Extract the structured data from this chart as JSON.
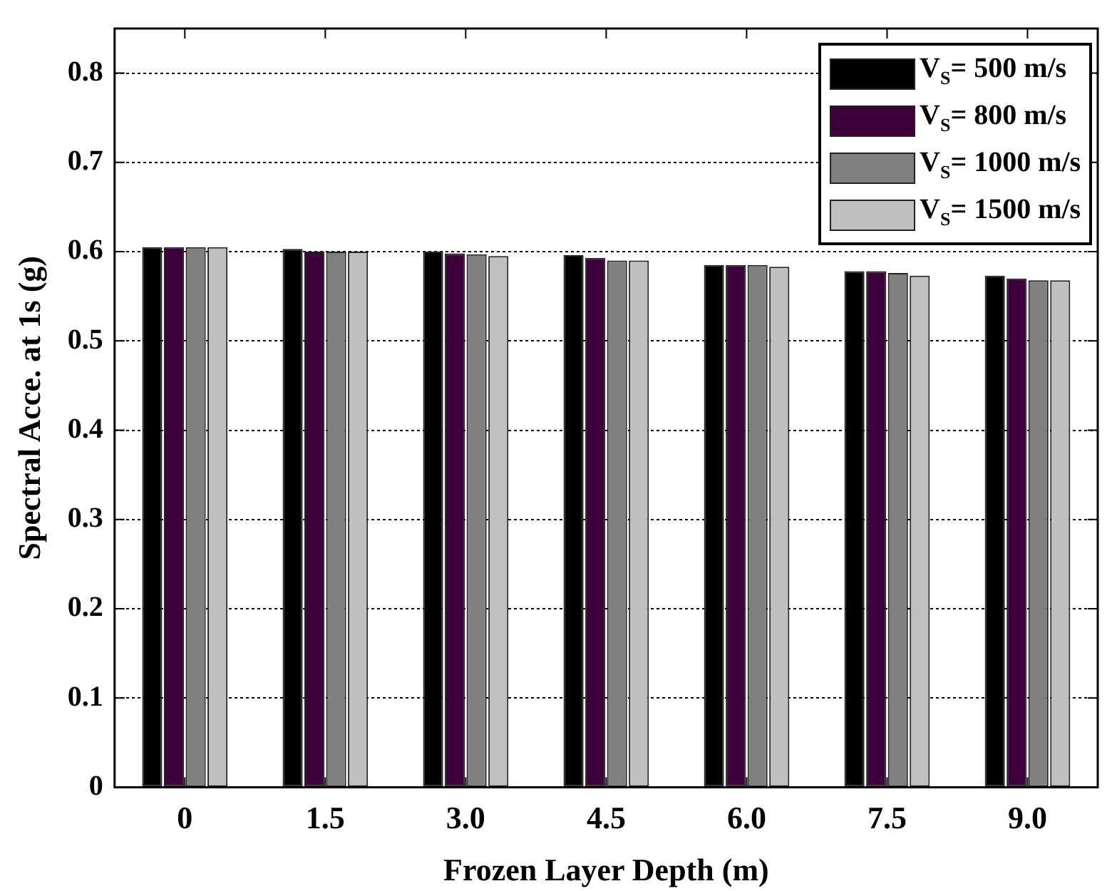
{
  "chart_data": {
    "type": "bar",
    "xlabel": "Frozen Layer Depth (m)",
    "ylabel": "Spectral Acce. at 1s (g)",
    "categories": [
      "0",
      "1.5",
      "3.0",
      "4.5",
      "6.0",
      "7.5",
      "9.0"
    ],
    "series": [
      {
        "name": "V$_{S}$= 500 m/s",
        "color": "#000000",
        "values": [
          0.605,
          0.603,
          0.6,
          0.596,
          0.585,
          0.578,
          0.573
        ]
      },
      {
        "name": "V$_{S}$= 800 m/s",
        "color": "#3d003d",
        "values": [
          0.605,
          0.6,
          0.598,
          0.593,
          0.585,
          0.578,
          0.57
        ]
      },
      {
        "name": "V$_{S}$= 1000 m/s",
        "color": "#808080",
        "values": [
          0.605,
          0.6,
          0.597,
          0.59,
          0.585,
          0.576,
          0.568
        ]
      },
      {
        "name": "V$_{S}$= 1500 m/s",
        "color": "#c0c0c0",
        "values": [
          0.605,
          0.6,
          0.595,
          0.59,
          0.583,
          0.573,
          0.568
        ]
      }
    ],
    "ylim": [
      0,
      0.85
    ],
    "yticks": [
      0,
      0.1,
      0.2,
      0.3,
      0.4,
      0.5,
      0.6,
      0.7,
      0.8
    ],
    "grid": "y",
    "legend": "top right"
  }
}
